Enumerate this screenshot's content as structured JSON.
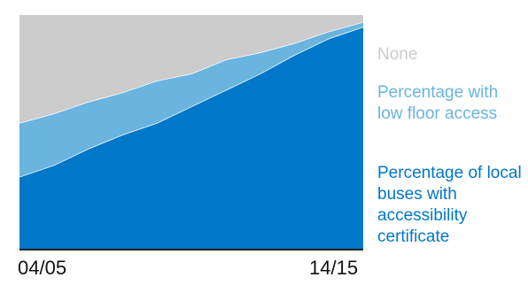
{
  "chart_data": {
    "type": "area",
    "stacked": true,
    "x_tick_labels": [
      "04/05",
      "14/15"
    ],
    "x": [
      0,
      1,
      2,
      3,
      4,
      5,
      6,
      7,
      8,
      9,
      10
    ],
    "ylim": [
      0,
      100
    ],
    "grid": false,
    "legend_position": "right",
    "series": [
      {
        "name": "Percentage of local buses with accessibility certificate",
        "color": "#0077c8",
        "values": [
          31,
          36,
          43,
          49,
          54,
          61,
          68,
          75,
          83,
          90,
          95
        ]
      },
      {
        "name": "Percentage with low floor access",
        "color": "#6ab4e0",
        "values": [
          23,
          22,
          20,
          18,
          18,
          14,
          13,
          9,
          5,
          3,
          2
        ]
      },
      {
        "name": "None",
        "color": "#cccccc",
        "values": [
          46,
          42,
          37,
          33,
          28,
          25,
          19,
          16,
          12,
          7,
          3
        ]
      }
    ]
  }
}
